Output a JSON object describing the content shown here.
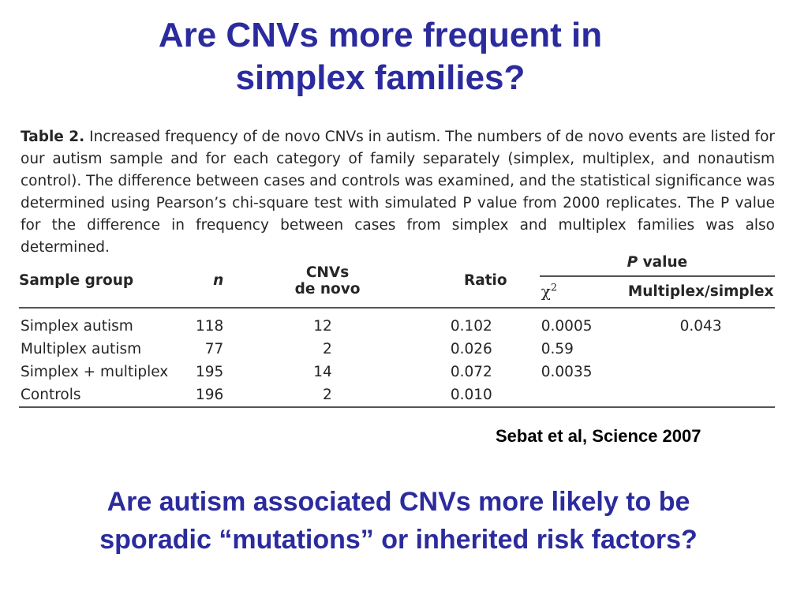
{
  "slide": {
    "title_line1": "Are CNVs more frequent in",
    "title_line2": "simplex families?",
    "citation": "Sebat et al, Science 2007",
    "question_line1": "Are autism associated CNVs more likely to be",
    "question_line2": "sporadic “mutations” or inherited risk factors?"
  },
  "table": {
    "caption_label": "Table 2.",
    "caption_text": "Increased frequency of de novo CNVs in autism. The numbers of de novo events are listed for our autism sample and for each category of family separately (simplex, multiplex, and nonautism control). The difference between cases and controls was examined, and the statistical significance was determined using Pearson’s chi-square test with simulated P value from 2000 replicates. The P value for the difference in frequency between cases from simplex and multiplex families was also determined.",
    "headers": {
      "sample_group": "Sample group",
      "n": "n",
      "cnvs_line1": "CNVs",
      "cnvs_line2": "de novo",
      "ratio": "Ratio",
      "p_value_p": "P",
      "p_value_word": "value",
      "chi_symbol": "χ",
      "chi_exp": "2",
      "multiplex_simplex": "Multiplex/simplex"
    },
    "rows": [
      {
        "group": "Simplex autism",
        "n": "118",
        "cnvs": "12",
        "ratio": "0.102",
        "chi2": "0.0005",
        "ms": "0.043"
      },
      {
        "group": "Multiplex autism",
        "n": "77",
        "cnvs": "2",
        "ratio": "0.026",
        "chi2": "0.59",
        "ms": ""
      },
      {
        "group": "Simplex + multiplex",
        "n": "195",
        "cnvs": "14",
        "ratio": "0.072",
        "chi2": "0.0035",
        "ms": ""
      },
      {
        "group": "Controls",
        "n": "196",
        "cnvs": "2",
        "ratio": "0.010",
        "chi2": "",
        "ms": ""
      }
    ]
  }
}
